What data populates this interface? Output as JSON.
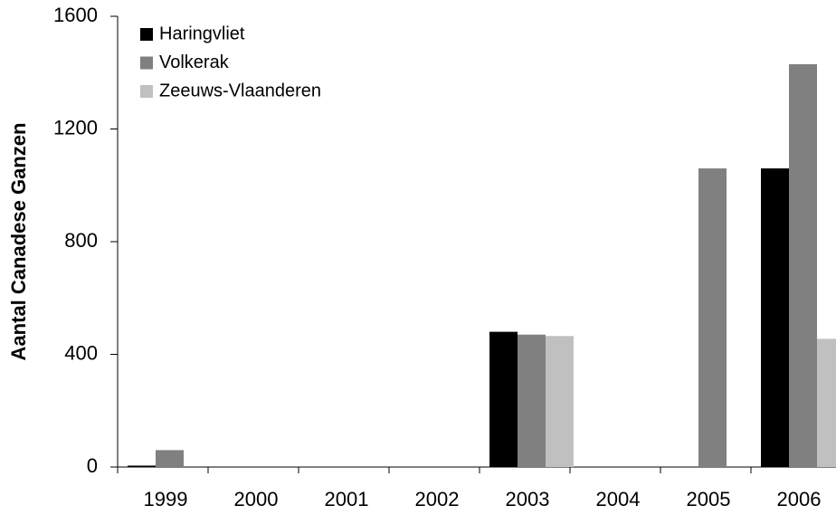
{
  "chart_data": {
    "type": "bar",
    "y_label": "Aantal Canadese Ganzen",
    "categories": [
      "1999",
      "2000",
      "2001",
      "2002",
      "2003",
      "2004",
      "2005",
      "2006"
    ],
    "series": [
      {
        "name": "Haringvliet",
        "color": "#000000",
        "values": [
          5,
          null,
          null,
          null,
          480,
          null,
          null,
          1060
        ]
      },
      {
        "name": "Volkerak",
        "color": "#808080",
        "values": [
          60,
          null,
          null,
          null,
          470,
          null,
          1060,
          1430
        ]
      },
      {
        "name": "Zeeuws-Vlaanderen",
        "color": "#c0c0c0",
        "values": [
          null,
          null,
          null,
          null,
          465,
          null,
          null,
          455
        ]
      }
    ],
    "ylim": [
      0,
      1600
    ],
    "yticks": [
      0,
      400,
      800,
      1200,
      1600
    ],
    "legend": "top-left"
  }
}
